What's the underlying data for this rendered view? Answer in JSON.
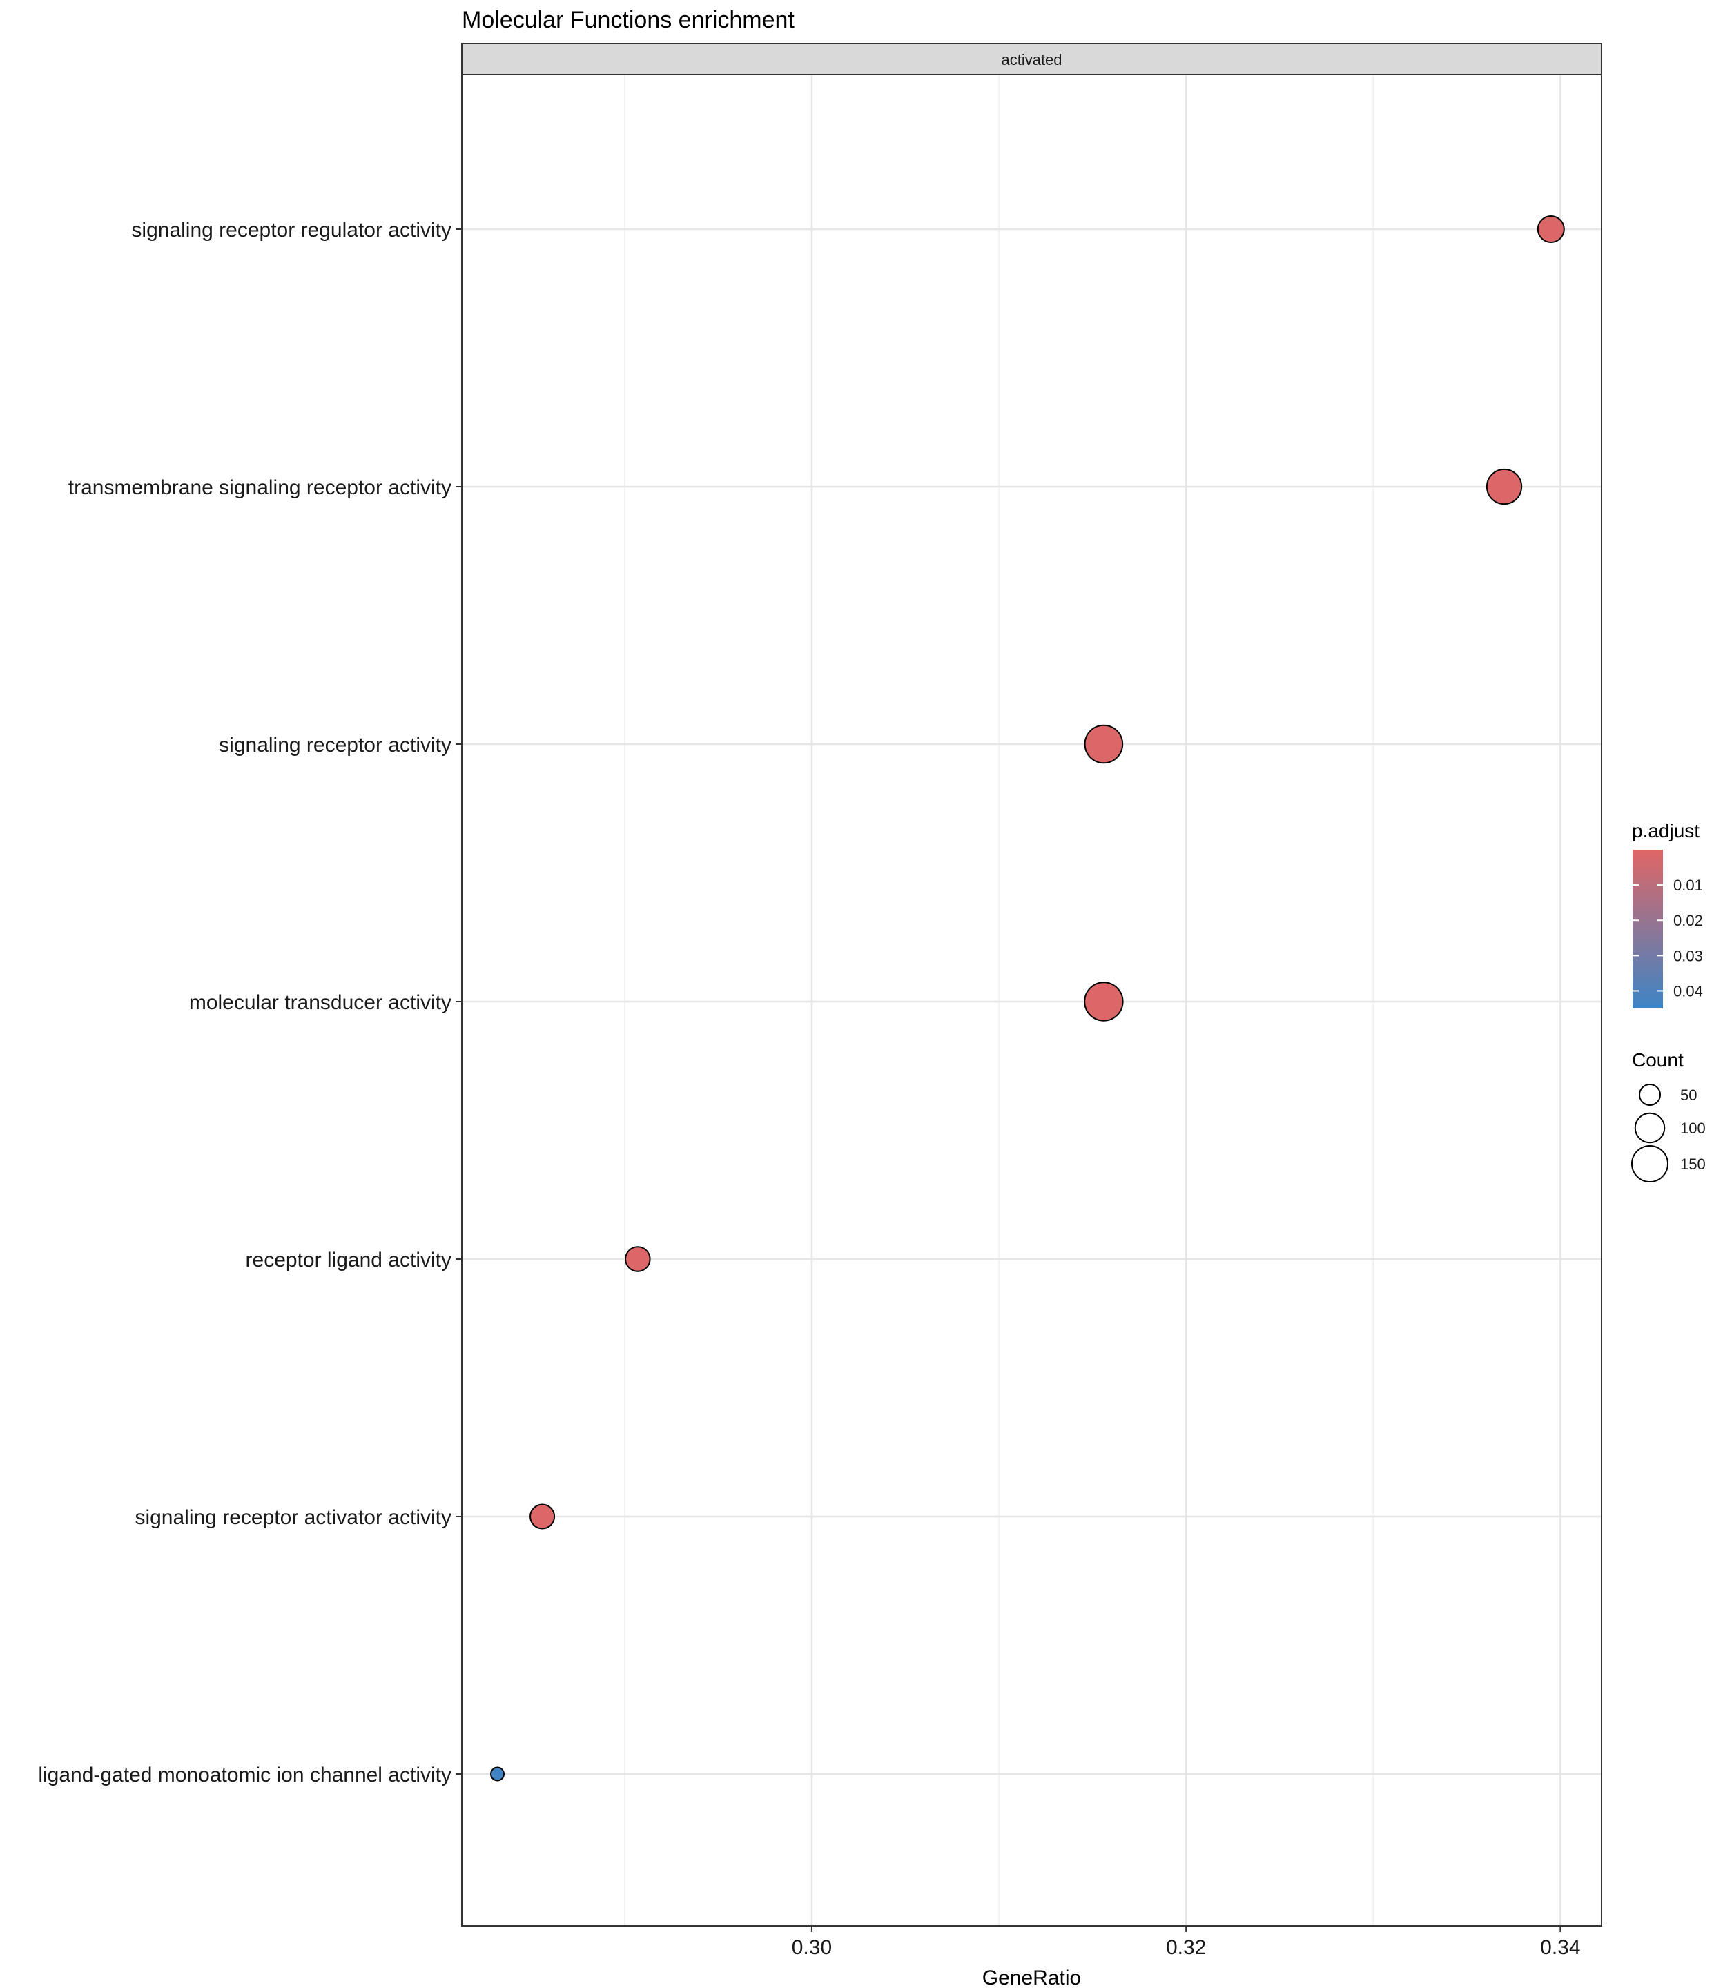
{
  "chart_data": {
    "type": "scatter",
    "title": "Molecular Functions enrichment",
    "facet_label": "activated",
    "xlabel": "GeneRatio",
    "ylabel": "",
    "xlim": [
      0.2813,
      0.3422
    ],
    "x_ticks": [
      0.3,
      0.32,
      0.34
    ],
    "x_tick_labels": [
      "0.30",
      "0.32",
      "0.34"
    ],
    "categories": [
      "signaling receptor regulator activity",
      "transmembrane signaling receptor activity",
      "signaling receptor activity",
      "molecular transducer activity",
      "receptor ligand activity",
      "signaling receptor activator activity",
      "ligand-gated monoatomic ion channel activity"
    ],
    "points": [
      {
        "term": "signaling receptor regulator activity",
        "gene_ratio": 0.3395,
        "count": 80,
        "p_adjust": 0.001
      },
      {
        "term": "transmembrane signaling receptor activity",
        "gene_ratio": 0.337,
        "count": 140,
        "p_adjust": 0.001
      },
      {
        "term": "signaling receptor activity",
        "gene_ratio": 0.3156,
        "count": 165,
        "p_adjust": 0.001
      },
      {
        "term": "molecular transducer activity",
        "gene_ratio": 0.3156,
        "count": 170,
        "p_adjust": 0.001
      },
      {
        "term": "receptor ligand activity",
        "gene_ratio": 0.2907,
        "count": 70,
        "p_adjust": 0.001
      },
      {
        "term": "signaling receptor activator activity",
        "gene_ratio": 0.2856,
        "count": 68,
        "p_adjust": 0.001
      },
      {
        "term": "ligand-gated monoatomic ion channel activity",
        "gene_ratio": 0.2832,
        "count": 20,
        "p_adjust": 0.044
      }
    ],
    "color_legend": {
      "title": "p.adjust",
      "range": [
        0.0,
        0.045
      ],
      "ticks": [
        0.01,
        0.02,
        0.03,
        0.04
      ],
      "tick_labels": [
        "0.01",
        "0.02",
        "0.03",
        "0.04"
      ],
      "low_color": "#E06666",
      "high_color": "#3D85C6"
    },
    "size_legend": {
      "title": "Count",
      "values": [
        50,
        100,
        150
      ],
      "labels": [
        "50",
        "100",
        "150"
      ]
    },
    "grid": true,
    "legend_position": "right"
  }
}
